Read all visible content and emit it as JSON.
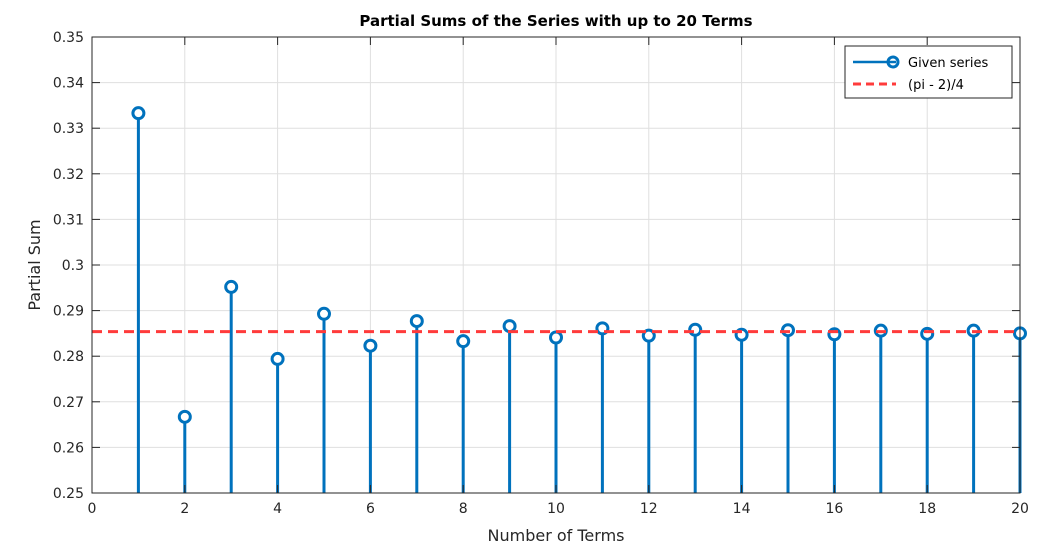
{
  "chart_data": {
    "type": "stem",
    "title": "Partial Sums of the Series with up to 20 Terms",
    "xlabel": "Number of Terms",
    "ylabel": "Partial Sum",
    "xlim": [
      0,
      20
    ],
    "ylim": [
      0.25,
      0.35
    ],
    "xticks": [
      "0",
      "2",
      "4",
      "6",
      "8",
      "10",
      "12",
      "14",
      "16",
      "18",
      "20"
    ],
    "yticks": [
      "0.25",
      "0.26",
      "0.27",
      "0.28",
      "0.29",
      "0.3",
      "0.31",
      "0.32",
      "0.33",
      "0.34",
      "0.35"
    ],
    "grid": true,
    "legend_position": "top-right",
    "series": [
      {
        "name": "Given series",
        "style": "stem with open circle markers",
        "color": "#0072BD",
        "x": [
          1,
          2,
          3,
          4,
          5,
          6,
          7,
          8,
          9,
          10,
          11,
          12,
          13,
          14,
          15,
          16,
          17,
          18,
          19,
          20
        ],
        "values": [
          0.3333,
          0.2667,
          0.2952,
          0.2794,
          0.2893,
          0.2823,
          0.2877,
          0.2833,
          0.2866,
          0.2841,
          0.2861,
          0.2845,
          0.2858,
          0.2847,
          0.2857,
          0.2848,
          0.2856,
          0.2849,
          0.2856,
          0.285
        ]
      },
      {
        "name": "(pi - 2)/4",
        "style": "dashed horizontal line",
        "color": "#FF3B3B",
        "value": 0.2854
      }
    ]
  }
}
